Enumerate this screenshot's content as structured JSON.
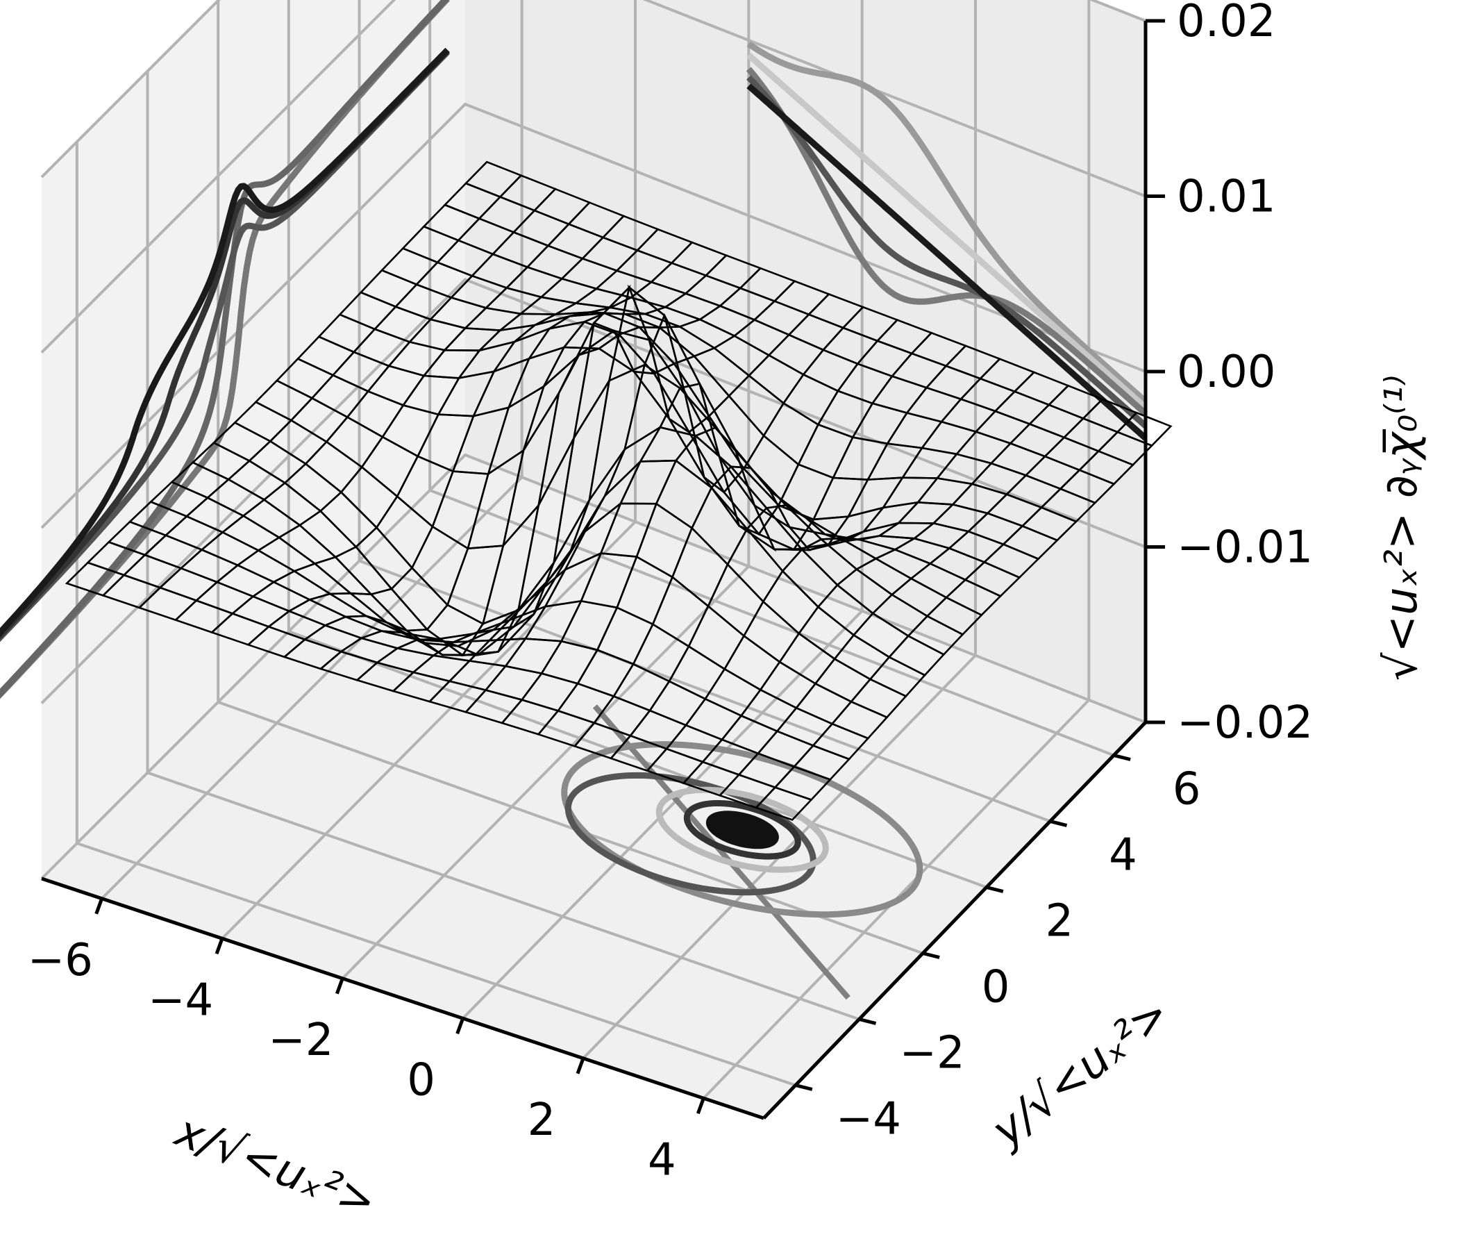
{
  "chart_data": {
    "type": "surface3d",
    "title": "",
    "xlabel": "x/√<uₓ²>",
    "ylabel": "y/√<uₓ²>",
    "zlabel": "√<uₓ²> ∂ᵧχ̅₀⁽¹⁾",
    "xlim": [
      -7,
      5
    ],
    "ylim": [
      -5,
      7
    ],
    "zlim": [
      -0.02,
      0.02
    ],
    "x_ticks": [
      -6,
      -4,
      -2,
      0,
      2,
      4
    ],
    "x_tick_labels": [
      "−6",
      "−4",
      "−2",
      "0",
      "2",
      "4"
    ],
    "y_ticks": [
      -4,
      -2,
      0,
      2,
      4,
      6
    ],
    "y_tick_labels": [
      "−4",
      "−2",
      "0",
      "2",
      "4",
      "6"
    ],
    "z_ticks": [
      -0.02,
      -0.01,
      0.0,
      0.01,
      0.02
    ],
    "z_tick_labels": [
      "−0.02",
      "−0.01",
      "0.00",
      "0.01",
      "0.02"
    ],
    "grid": true,
    "surface": {
      "x_range": [
        -6,
        6
      ],
      "y_range": [
        -6,
        6
      ],
      "grid_lines": 20,
      "peak": 0.012,
      "trough": -0.019,
      "color": "#b5b5b5"
    },
    "x_projections": {
      "plane": "x = -7",
      "y_offsets": [
        0,
        0.5,
        1.0,
        2.0,
        3.0
      ],
      "colors": [
        "#777777",
        "#666666",
        "#555555",
        "#333333",
        "#1a1a1a"
      ]
    },
    "y_projections": {
      "plane": "y = 7",
      "x_offsets": [
        0,
        0.5,
        1.0,
        2.0,
        3.0
      ],
      "colors": [
        "#9a9a9a",
        "#c8c8c8",
        "#7a7a7a",
        "#555555",
        "#1a1a1a"
      ]
    },
    "floor_contours": {
      "plane": "z = -0.02",
      "radii": [
        3.2,
        2.2,
        1.5,
        1.0,
        0.6
      ],
      "colors": [
        "#8a8a8a",
        "#555555",
        "#bbbbbb",
        "#333333",
        "#111111"
      ],
      "center_line_color": "#808080"
    }
  }
}
